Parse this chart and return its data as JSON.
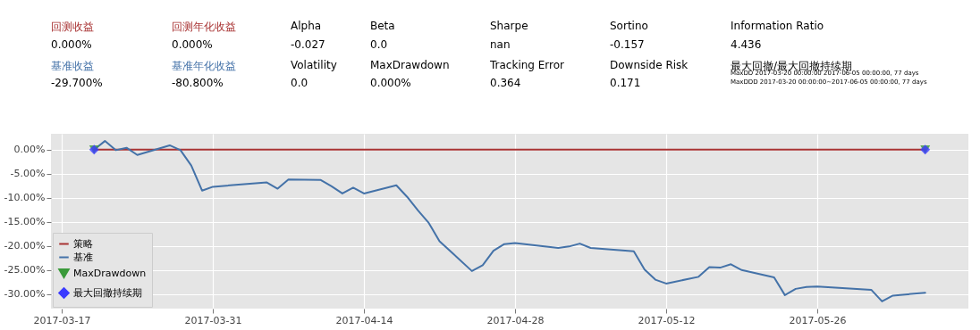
{
  "chart_data": {
    "type": "line",
    "annotations": [
      "回测收益",
      "回测年化收益",
      "Alpha",
      "Beta",
      "Sharpe",
      "Sortino",
      "Information Ratio",
      "0.000%",
      "0.000%",
      "-0.027",
      "0.0",
      "nan",
      "-0.157",
      "4.436",
      "基准收益",
      "基准年化收益",
      "Volatility",
      "MaxDrawdown",
      "Tracking Error",
      "Downside Risk",
      "最大回撤/最大回撤持续期",
      "-29.700%",
      "-80.800%",
      "0.0",
      "0.000%",
      "0.364",
      "0.171",
      "MaxDD  2017-03-20 00:00:00 2017-06-05 00:00:00, 77 days",
      "MaxDDD 2017-03-20 00:00:00~2017-06-05 00:00:00, 77 days"
    ],
    "xlim": [
      "2017-03-16",
      "2017-06-09"
    ],
    "xticks": [
      "2017-03-17",
      "2017-03-31",
      "2017-04-14",
      "2017-04-28",
      "2017-05-12",
      "2017-05-26"
    ],
    "ylim": [
      -33,
      3.3
    ],
    "yticks": [
      {
        "value": 0,
        "label": "0.00%"
      },
      {
        "value": -5,
        "label": "-5.00%"
      },
      {
        "value": -10,
        "label": "-10.00%"
      },
      {
        "value": -15,
        "label": "-15.00%"
      },
      {
        "value": -20,
        "label": "-20.00%"
      },
      {
        "value": -25,
        "label": "-25.00%"
      },
      {
        "value": -30,
        "label": "-30.00%"
      }
    ],
    "grid": true,
    "legend": "bottom left",
    "series": [
      {
        "name": "策略",
        "color": "#a83232",
        "x": [
          "2017-03-20",
          "2017-06-05"
        ],
        "values": [
          0,
          0
        ]
      },
      {
        "name": "基准",
        "color": "#4472a8",
        "x": [
          "2017-03-20",
          "2017-03-21",
          "2017-03-22",
          "2017-03-23",
          "2017-03-24",
          "2017-03-27",
          "2017-03-28",
          "2017-03-29",
          "2017-03-30",
          "2017-03-31",
          "2017-04-05",
          "2017-04-06",
          "2017-04-07",
          "2017-04-10",
          "2017-04-11",
          "2017-04-12",
          "2017-04-13",
          "2017-04-14",
          "2017-04-17",
          "2017-04-18",
          "2017-04-19",
          "2017-04-20",
          "2017-04-21",
          "2017-04-24",
          "2017-04-25",
          "2017-04-26",
          "2017-04-27",
          "2017-04-28",
          "2017-05-02",
          "2017-05-03",
          "2017-05-04",
          "2017-05-05",
          "2017-05-09",
          "2017-05-10",
          "2017-05-11",
          "2017-05-12",
          "2017-05-15",
          "2017-05-16",
          "2017-05-17",
          "2017-05-18",
          "2017-05-19",
          "2017-05-22",
          "2017-05-23",
          "2017-05-24",
          "2017-05-25",
          "2017-05-26",
          "2017-05-31",
          "2017-06-01",
          "2017-06-02",
          "2017-06-05"
        ],
        "values": [
          0,
          1.8,
          -0.1,
          0.4,
          -1.1,
          0.9,
          -0.1,
          -3.3,
          -8.5,
          -7.7,
          -6.8,
          -8.1,
          -6.2,
          -6.3,
          -7.6,
          -9.1,
          -7.9,
          -9.1,
          -7.4,
          -9.8,
          -12.6,
          -15.2,
          -19.0,
          -25.2,
          -24.0,
          -21.0,
          -19.6,
          -19.4,
          -20.4,
          -20.1,
          -19.5,
          -20.4,
          -21.1,
          -24.9,
          -27.0,
          -27.8,
          -26.4,
          -24.4,
          -24.5,
          -23.8,
          -25.0,
          -26.5,
          -30.2,
          -28.9,
          -28.5,
          -28.4,
          -29.1,
          -31.5,
          -30.3,
          -29.7
        ]
      },
      {
        "name": "MaxDrawdown",
        "color": "#3a9a3a",
        "type": "scatter",
        "marker": "triangle",
        "x": [
          "2017-03-20",
          "2017-06-05"
        ],
        "values": [
          0,
          0
        ]
      },
      {
        "name": "最大回撤持续期",
        "color": "#3b3bff",
        "type": "scatter",
        "marker": "diamond",
        "x": [
          "2017-03-20",
          "2017-06-05"
        ],
        "values": [
          0,
          0
        ]
      }
    ]
  }
}
